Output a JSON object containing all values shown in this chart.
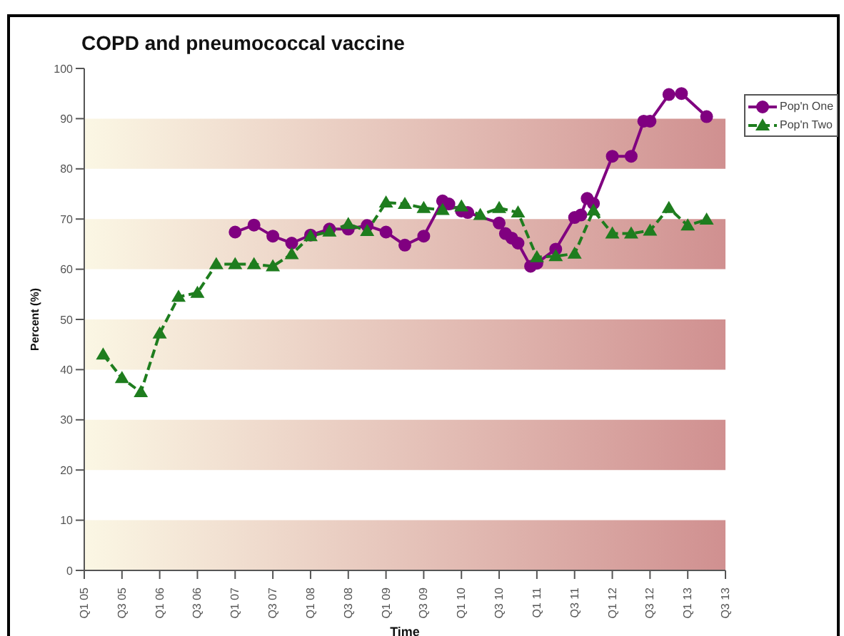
{
  "chart_data": {
    "type": "line",
    "title": "COPD and pneumococcal vaccine",
    "xlabel": "Time",
    "ylabel": "Percent (%)",
    "xlim": [
      "2005-01",
      "2013-07"
    ],
    "xticks": [
      {
        "value": "2005-01",
        "label": "Q1 05"
      },
      {
        "value": "2005-07",
        "label": "Q3 05"
      },
      {
        "value": "2006-01",
        "label": "Q1 06"
      },
      {
        "value": "2006-07",
        "label": "Q3 06"
      },
      {
        "value": "2007-01",
        "label": "Q1 07"
      },
      {
        "value": "2007-07",
        "label": "Q3 07"
      },
      {
        "value": "2008-01",
        "label": "Q1 08"
      },
      {
        "value": "2008-07",
        "label": "Q3 08"
      },
      {
        "value": "2009-01",
        "label": "Q1 09"
      },
      {
        "value": "2009-07",
        "label": "Q3 09"
      },
      {
        "value": "2010-01",
        "label": "Q1 10"
      },
      {
        "value": "2010-07",
        "label": "Q3 10"
      },
      {
        "value": "2011-01",
        "label": "Q1 11"
      },
      {
        "value": "2011-07",
        "label": "Q3 11"
      },
      {
        "value": "2012-01",
        "label": "Q1 12"
      },
      {
        "value": "2012-07",
        "label": "Q3 12"
      },
      {
        "value": "2013-01",
        "label": "Q1 13"
      },
      {
        "value": "2013-07",
        "label": "Q3 13"
      }
    ],
    "ylim": [
      0,
      100
    ],
    "yticks": [
      0,
      10,
      20,
      30,
      40,
      50,
      60,
      70,
      80,
      90,
      100
    ],
    "bands": [
      {
        "axis": "y",
        "from": 0,
        "to": 10,
        "color": "#d09090"
      },
      {
        "axis": "y",
        "from": 20,
        "to": 30,
        "color": "#d09090"
      },
      {
        "axis": "y",
        "from": 40,
        "to": 50,
        "color": "#d09090"
      },
      {
        "axis": "y",
        "from": 60,
        "to": 70,
        "color": "#d09090"
      },
      {
        "axis": "y",
        "from": 80,
        "to": 90,
        "color": "#d09090"
      }
    ],
    "legend": "top right",
    "series": [
      {
        "name": "Pop'n One",
        "color": "#800080",
        "marker": "circle",
        "line_style": "solid",
        "x": [
          "2007-01",
          "2007-04",
          "2007-07",
          "2007-10",
          "2008-01",
          "2008-04",
          "2008-07",
          "2008-10",
          "2009-01",
          "2009-04",
          "2009-07",
          "2009-10",
          "2009-11",
          "2010-01",
          "2010-02",
          "2010-07",
          "2010-08",
          "2010-09",
          "2010-10",
          "2010-12",
          "2011-01",
          "2011-04",
          "2011-07",
          "2011-08",
          "2011-09",
          "2011-10",
          "2012-01",
          "2012-04",
          "2012-06",
          "2012-07",
          "2012-10",
          "2012-12",
          "2013-04"
        ],
        "values": [
          67.4,
          68.8,
          66.6,
          65.2,
          66.8,
          68,
          68,
          68.7,
          67.4,
          64.8,
          66.6,
          73.6,
          73,
          71.6,
          71.3,
          69.2,
          67.1,
          66.2,
          65.2,
          60.6,
          61.2,
          64,
          70.3,
          70.8,
          74.1,
          73.1,
          82.5,
          82.5,
          89.5,
          89.5,
          94.8,
          95,
          90.4
        ]
      },
      {
        "name": "Pop'n Two",
        "color": "#1e7d1e",
        "marker": "triangle",
        "line_style": "dashed",
        "x": [
          "2005-04",
          "2005-07",
          "2005-10",
          "2006-01",
          "2006-04",
          "2006-07",
          "2006-10",
          "2007-01",
          "2007-04",
          "2007-07",
          "2007-10",
          "2008-01",
          "2008-04",
          "2008-07",
          "2008-10",
          "2009-01",
          "2009-04",
          "2009-07",
          "2009-10",
          "2010-01",
          "2010-04",
          "2010-07",
          "2010-10",
          "2011-01",
          "2011-04",
          "2011-07",
          "2011-10",
          "2012-01",
          "2012-04",
          "2012-07",
          "2012-10",
          "2013-01",
          "2013-04"
        ],
        "values": [
          43,
          38.3,
          35.5,
          47.2,
          54.5,
          55.3,
          61,
          61,
          61,
          60.6,
          63,
          66.6,
          67.5,
          69,
          67.6,
          73.3,
          73,
          72.2,
          71.8,
          72.5,
          70.8,
          72.2,
          71.3,
          62.4,
          62.6,
          63.1,
          71.7,
          67.1,
          67.1,
          67.7,
          72.2,
          68.7,
          69.9
        ]
      }
    ]
  }
}
